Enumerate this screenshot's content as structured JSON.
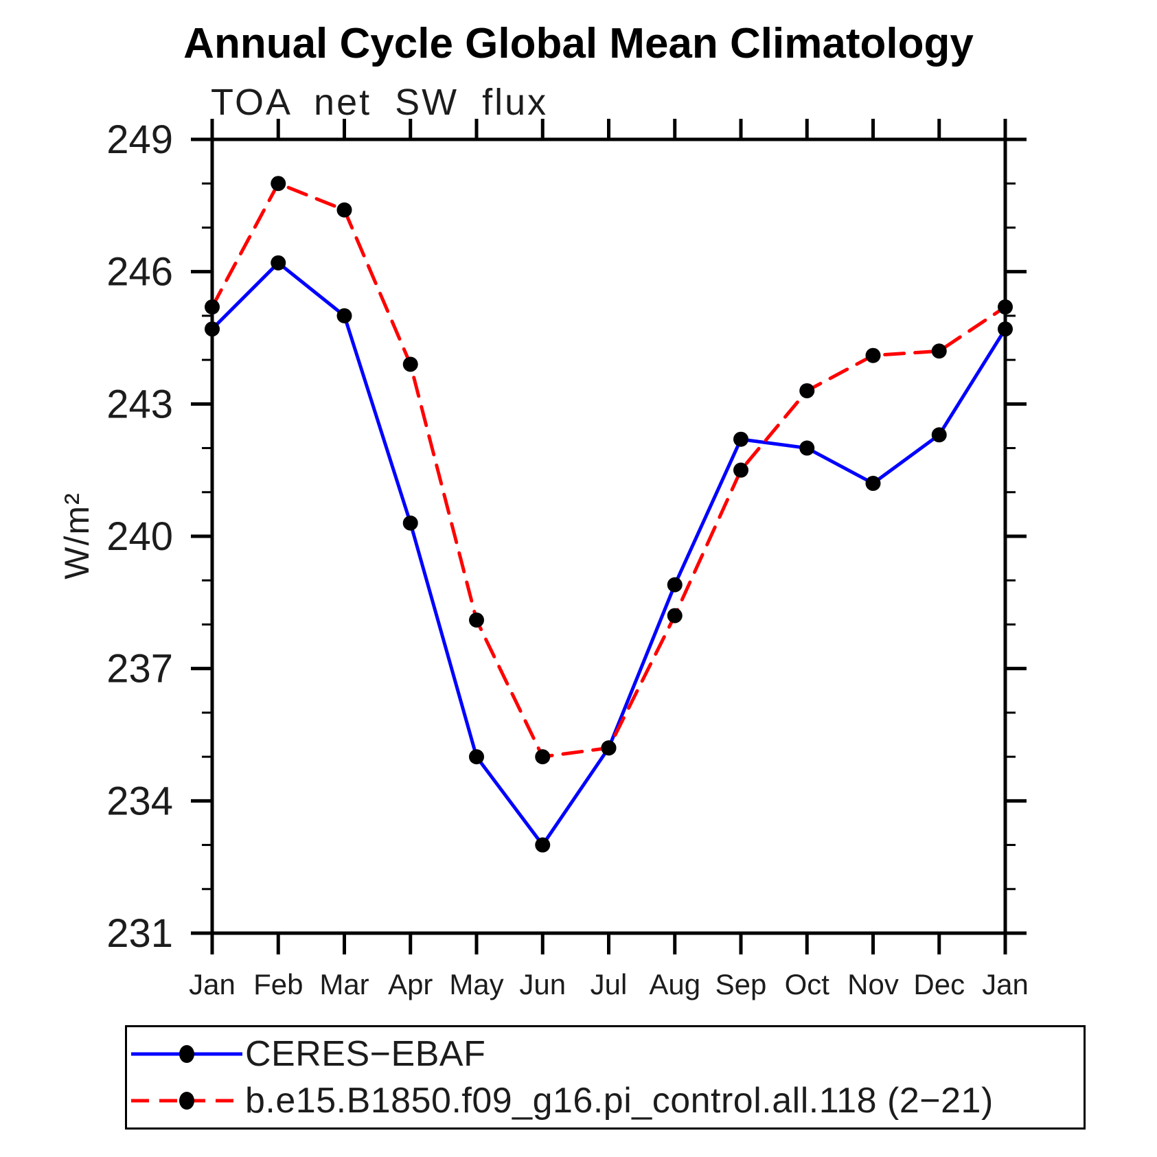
{
  "title": "Annual Cycle Global Mean Climatology",
  "subtitle": "TOA net SW flux",
  "ylabel": "W/m²",
  "colors": {
    "obs_line": "#0000ff",
    "model_line": "#ff0000",
    "marker": "#000000",
    "axis": "#000000",
    "text": "#1c1c1c"
  },
  "legend": {
    "items": [
      {
        "label": "CERES−EBAF",
        "color": "#0000ff",
        "style": "solid"
      },
      {
        "label": "b.e15.B1850.f09_g16.pi_control.all.118 (2−21)",
        "color": "#ff0000",
        "style": "dashed"
      }
    ]
  },
  "chart_data": {
    "type": "line",
    "title": "Annual Cycle Global Mean Climatology",
    "subtitle": "TOA net SW flux",
    "xlabel": "",
    "ylabel": "W/m²",
    "categories": [
      "Jan",
      "Feb",
      "Mar",
      "Apr",
      "May",
      "Jun",
      "Jul",
      "Aug",
      "Sep",
      "Oct",
      "Nov",
      "Dec",
      "Jan"
    ],
    "series": [
      {
        "name": "CERES−EBAF",
        "color": "#0000ff",
        "dash": "solid",
        "values": [
          244.7,
          246.2,
          245.0,
          240.3,
          235.0,
          233.0,
          235.2,
          238.9,
          242.2,
          242.0,
          241.2,
          242.3,
          244.7
        ]
      },
      {
        "name": "b.e15.B1850.f09_g16.pi_control.all.118 (2−21)",
        "color": "#ff0000",
        "dash": "dashed",
        "values": [
          245.2,
          248.0,
          247.4,
          243.9,
          238.1,
          235.0,
          235.2,
          238.2,
          241.5,
          243.3,
          244.1,
          244.2,
          245.2
        ]
      }
    ],
    "ylim": [
      231,
      249
    ],
    "yticks_major": [
      231,
      234,
      237,
      240,
      243,
      246,
      249
    ],
    "ytick_minor_step": 1,
    "marker": "filled-circle",
    "marker_color": "#000000",
    "grid": false,
    "legend_position": "bottom"
  }
}
